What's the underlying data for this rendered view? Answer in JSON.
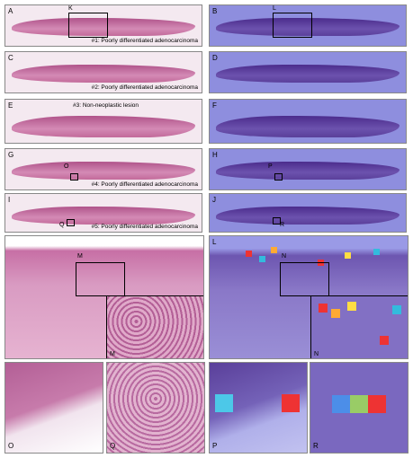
{
  "rows": [
    {
      "left": "A",
      "right": "B",
      "caption": "#1: Poorly differentiated adenocarcinoma",
      "left_box": "K",
      "right_box": "L"
    },
    {
      "left": "C",
      "right": "D",
      "caption": "#2: Poorly differentiated adenocarcinoma"
    },
    {
      "left": "E",
      "right": "F",
      "caption": "#3: Non-neoplastic lesion"
    },
    {
      "left": "G",
      "right": "H",
      "caption": "#4: Poorly differentiated adenocarcinoma",
      "left_box": "O",
      "right_box": "P"
    },
    {
      "left": "I",
      "right": "J",
      "caption": "#5: Poorly differentiated adenocarcinoma",
      "left_box": "Q",
      "right_box": "R"
    }
  ],
  "zooms": [
    {
      "letter": "K",
      "inset": "M"
    },
    {
      "letter": "L",
      "inset": "N"
    }
  ],
  "details": [
    "O",
    "Q",
    "P",
    "R"
  ]
}
